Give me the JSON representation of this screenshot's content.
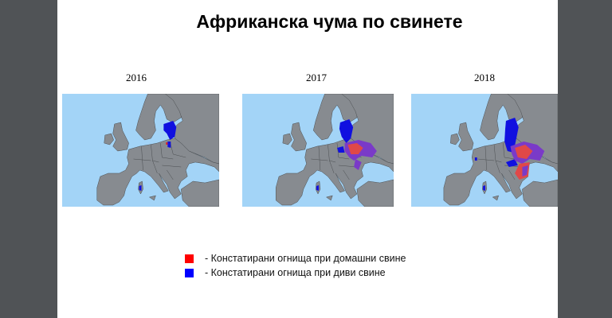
{
  "slide": {
    "title": "Африканска чума по свинете",
    "maps": [
      {
        "year": "2016"
      },
      {
        "year": "2017"
      },
      {
        "year": "2018"
      }
    ],
    "legend": [
      {
        "label": "- Констатирани огнища при домашни свине",
        "color": "#ff0000"
      },
      {
        "label": "- Констатирани огнища при диви свине",
        "color": "#0000ff"
      }
    ],
    "colors": {
      "sea": "#a3d4f7",
      "land": "#878b90",
      "background": "#505356"
    }
  }
}
